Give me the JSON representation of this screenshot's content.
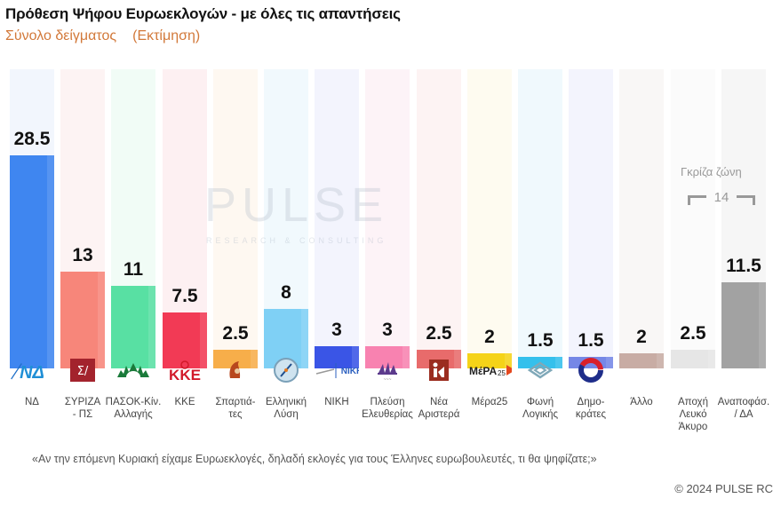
{
  "header": {
    "title": "Πρόθεση Ψήφου Ευρωεκλογών - με όλες τις απαντήσεις",
    "subtitle": "Σύνολο δείγματος",
    "subtitle_note": "(Εκτίμηση)"
  },
  "watermark": {
    "brand": "PULSE",
    "tagline": "RESEARCH & CONSULTING"
  },
  "gray_zone": {
    "label": "Γκρίζα ζώνη",
    "value": "14"
  },
  "footer": {
    "question": "«Αν την επόμενη Κυριακή είχαμε Ευρωεκλογές, δηλαδή εκλογές για τους Έλληνες ευρωβουλευτές, τι θα ψηφίζατε;»",
    "copyright": "© 2024 PULSE RC"
  },
  "chart_data": {
    "type": "bar",
    "title": "Πρόθεση Ψήφου Ευρωεκλογών - με όλες τις απαντήσεις",
    "subtitle": "Σύνολο δείγματος (Εκτίμηση)",
    "xlabel": "",
    "ylabel": "%",
    "ylim": [
      0,
      30
    ],
    "grid": false,
    "legend": "none",
    "categories": [
      "ΝΔ",
      "ΣΥΡΙΖΑ - ΠΣ",
      "ΠΑΣΟΚ-Κίν. Αλλαγής",
      "ΚΚΕ",
      "Σπαρτιάτες",
      "Ελληνική Λύση",
      "ΝΙΚΗ",
      "Πλεύση Ελευθερίας",
      "Νέα Αριστερά",
      "Μέρα25",
      "Φωνή Λογικής",
      "Δημοκράτες",
      "Άλλο",
      "Αποχή Λευκό Άκυρο",
      "Αναποφάσ. / ΔΑ"
    ],
    "values": [
      28.5,
      13,
      11,
      7.5,
      2.5,
      8,
      3,
      3,
      2.5,
      2,
      1.5,
      1.5,
      2,
      2.5,
      11.5
    ],
    "value_labels": [
      "28.5",
      "13",
      "11",
      "7.5",
      "2.5",
      "8",
      "3",
      "3",
      "2.5",
      "2",
      "1.5",
      "1.5",
      "2",
      "2.5",
      "11.5"
    ],
    "annotations": [
      {
        "text": "Γκρίζα ζώνη",
        "value": 14,
        "spans": [
          "Αποχή Λευκό Άκυρο",
          "Αναποφάσ. / ΔΑ"
        ]
      }
    ],
    "bars": [
      {
        "label_lines": [
          "ΝΔ"
        ],
        "color": "#3f86f0",
        "bg": "#f2f6fd",
        "logo": "nd-logo"
      },
      {
        "label_lines": [
          "ΣΥΡΙΖΑ",
          "- ΠΣ"
        ],
        "color": "#f7867a",
        "bg": "#fdf3f3",
        "logo": "syriza-logo"
      },
      {
        "label_lines": [
          "ΠΑΣΟΚ-Κίν.",
          "Αλλαγής"
        ],
        "color": "#58e0a3",
        "bg": "#f1fcf6",
        "logo": "pasok-logo"
      },
      {
        "label_lines": [
          "ΚΚΕ"
        ],
        "color": "#f23a55",
        "bg": "#fdf0f2",
        "logo": "kke-logo"
      },
      {
        "label_lines": [
          "Σπαρτιά-",
          "τες"
        ],
        "color": "#f7ae4a",
        "bg": "#fef8f1",
        "logo": "spartiates-logo"
      },
      {
        "label_lines": [
          "Ελληνική",
          "Λύση"
        ],
        "color": "#7fd0f5",
        "bg": "#f1f9fd",
        "logo": "elliniki-lysi-logo"
      },
      {
        "label_lines": [
          "ΝΙΚΗ"
        ],
        "color": "#3a55e6",
        "bg": "#f3f4fd",
        "logo": "niki-logo"
      },
      {
        "label_lines": [
          "Πλεύση",
          "Ελευθερίας"
        ],
        "color": "#f882b0",
        "bg": "#fdf3f7",
        "logo": "plefsi-logo"
      },
      {
        "label_lines": [
          "Νέα",
          "Αριστερά"
        ],
        "color": "#e86b6b",
        "bg": "#fdf3f3",
        "logo": "nea-aristera-logo"
      },
      {
        "label_lines": [
          "Μέρα25"
        ],
        "color": "#f5d318",
        "bg": "#fefbf0",
        "logo": "mera25-logo"
      },
      {
        "label_lines": [
          "Φωνή",
          "Λογικής"
        ],
        "color": "#34c0ec",
        "bg": "#f0f9fd",
        "logo": "foni-logikis-logo"
      },
      {
        "label_lines": [
          "Δημο-",
          "κράτες"
        ],
        "color": "#7587e6",
        "bg": "#f3f4fd",
        "logo": "dimokrates-logo"
      },
      {
        "label_lines": [
          "Άλλο"
        ],
        "color": "#c8aca4",
        "bg": "#f9f7f6",
        "logo": ""
      },
      {
        "label_lines": [
          "Αποχή",
          "Λευκό",
          "Άκυρο"
        ],
        "color": "#e6e6e6",
        "bg": "#fbfbfb",
        "logo": ""
      },
      {
        "label_lines": [
          "Αναποφάσ.",
          "/ ΔΑ"
        ],
        "color": "#a2a2a2",
        "bg": "#f6f6f6",
        "logo": ""
      }
    ]
  }
}
